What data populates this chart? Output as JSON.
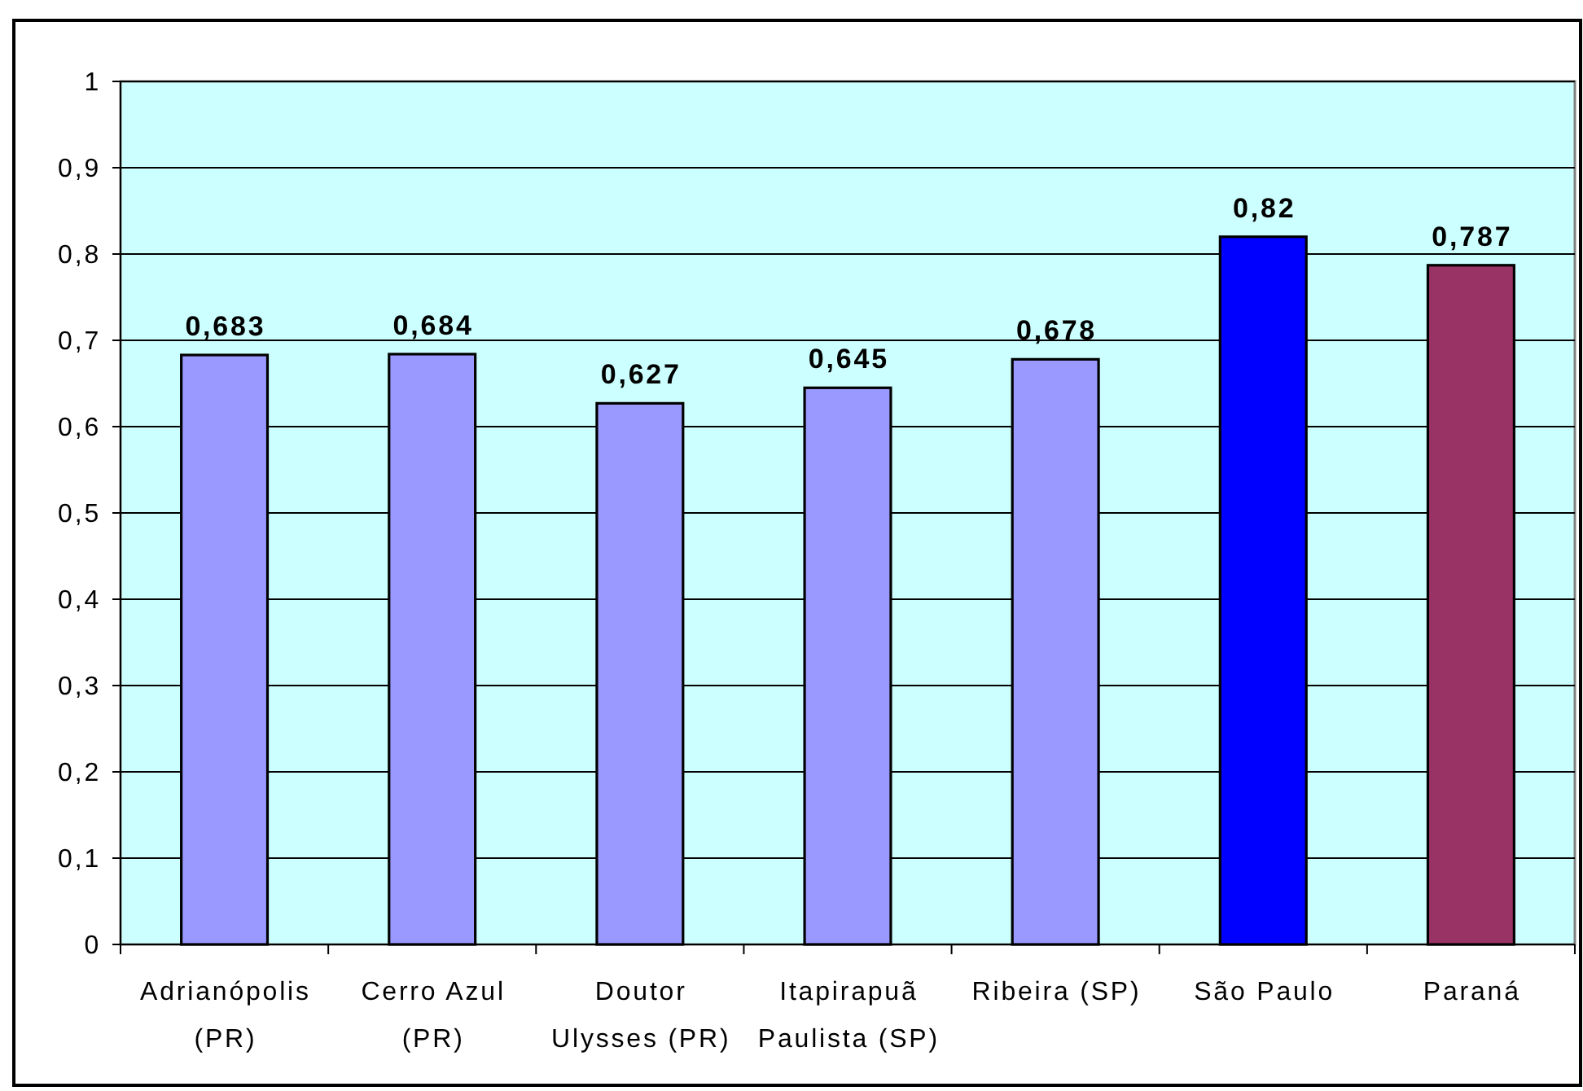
{
  "chart_data": {
    "type": "bar",
    "categories": [
      "Adrianópolis (PR)",
      "Cerro Azul (PR)",
      "Doutor Ulysses (PR)",
      "Itapirapuã Paulista (SP)",
      "Ribeira (SP)",
      "São Paulo",
      "Paraná"
    ],
    "values": [
      0.683,
      0.684,
      0.627,
      0.645,
      0.678,
      0.82,
      0.787
    ],
    "colors": [
      "#9999ff",
      "#9999ff",
      "#9999ff",
      "#9999ff",
      "#9999ff",
      "#0000ff",
      "#993366"
    ],
    "value_labels": [
      "0,683",
      "0,684",
      "0,627",
      "0,645",
      "0,678",
      "0,82",
      "0,787"
    ],
    "ylim": [
      0,
      1
    ],
    "yticks": [
      0,
      {
        "value": 0.1,
        "label": "0,1"
      },
      {
        "value": 0.2,
        "label": "0,2"
      },
      {
        "value": 0.3,
        "label": "0,3"
      },
      {
        "value": 0.4,
        "label": "0,4"
      },
      {
        "value": 0.5,
        "label": "0,5"
      },
      {
        "value": 0.6,
        "label": "0,6"
      },
      {
        "value": 0.7,
        "label": "0,7"
      },
      {
        "value": 0.8,
        "label": "0,8"
      },
      {
        "value": 0.9,
        "label": "0,9"
      },
      1
    ],
    "grid": "y"
  }
}
